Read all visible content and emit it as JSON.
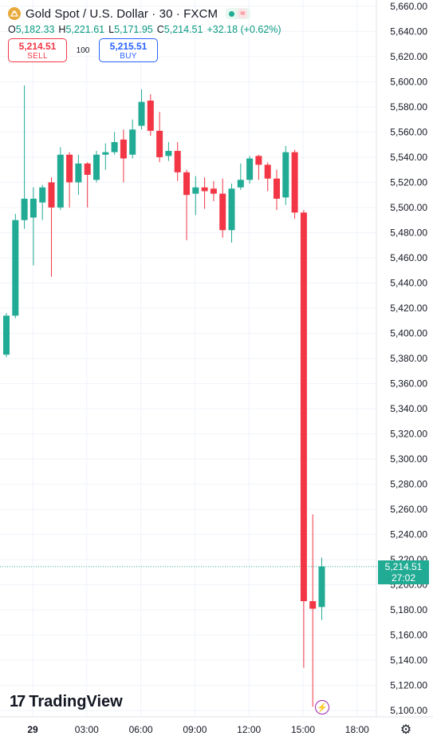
{
  "header": {
    "title": "Gold Spot / U.S. Dollar · 30 · FXCM",
    "icon": "gold-coin-icon",
    "status_icon": "market-open-dot-icon",
    "status_extra": "≈",
    "ohlc": {
      "o_key": "O",
      "o_val": "5,182.33",
      "h_key": "H",
      "h_val": "5,221.61",
      "l_key": "L",
      "l_val": "5,171.95",
      "c_key": "C",
      "c_val": "5,214.51",
      "change": "+32.18 (+0.62%)"
    }
  },
  "trade": {
    "sell_price": "5,214.51",
    "sell_label": "SELL",
    "spread": "100",
    "buy_price": "5,215.51",
    "buy_label": "BUY"
  },
  "price_tag": {
    "price": "5,214.51",
    "countdown": "27:02"
  },
  "logo": {
    "mark": "17",
    "text": "TradingView"
  },
  "colors": {
    "up": "#22ab94",
    "down": "#f23645",
    "grid": "#e0e3eb",
    "price_tag": "#22ab94"
  },
  "chart_data": {
    "type": "candlestick",
    "title": "Gold Spot / U.S. Dollar · 30 · FXCM",
    "ylim": [
      5095,
      5665
    ],
    "y_ticks": [
      5660,
      5640,
      5620,
      5600,
      5580,
      5560,
      5540,
      5520,
      5500,
      5480,
      5460,
      5440,
      5420,
      5400,
      5380,
      5360,
      5340,
      5320,
      5300,
      5280,
      5260,
      5240,
      5220,
      5200,
      5180,
      5160,
      5140,
      5120,
      5100
    ],
    "y_tick_labels": [
      "5,660.00",
      "5,640.00",
      "5,620.00",
      "5,600.00",
      "5,580.00",
      "5,560.00",
      "5,540.00",
      "5,520.00",
      "5,500.00",
      "5,480.00",
      "5,460.00",
      "5,440.00",
      "5,420.00",
      "5,400.00",
      "5,380.00",
      "5,360.00",
      "5,340.00",
      "5,320.00",
      "5,300.00",
      "5,280.00",
      "5,260.00",
      "5,240.00",
      "5,220.00",
      "5,200.00",
      "5,180.00",
      "5,160.00",
      "5,140.00",
      "5,120.00",
      "5,100.00"
    ],
    "x_tick_labels": [
      "29",
      "03:00",
      "06:00",
      "09:00",
      "12:00",
      "15:00",
      "18:00"
    ],
    "x_tick_index": [
      0,
      6,
      12,
      18,
      24,
      30,
      36
    ],
    "last_price": 5214.51,
    "candles": [
      {
        "o": 5383,
        "h": 5416,
        "l": 5381,
        "c": 5414
      },
      {
        "o": 5414,
        "h": 5495,
        "l": 5412,
        "c": 5490
      },
      {
        "o": 5490,
        "h": 5597,
        "l": 5483,
        "c": 5507
      },
      {
        "o": 5492,
        "h": 5516,
        "l": 5454,
        "c": 5507
      },
      {
        "o": 5504,
        "h": 5518,
        "l": 5490,
        "c": 5516
      },
      {
        "o": 5520,
        "h": 5524,
        "l": 5445,
        "c": 5500
      },
      {
        "o": 5500,
        "h": 5548,
        "l": 5498,
        "c": 5542
      },
      {
        "o": 5542,
        "h": 5544,
        "l": 5500,
        "c": 5520
      },
      {
        "o": 5520,
        "h": 5542,
        "l": 5510,
        "c": 5535
      },
      {
        "o": 5535,
        "h": 5536,
        "l": 5500,
        "c": 5526
      },
      {
        "o": 5522,
        "h": 5545,
        "l": 5520,
        "c": 5542
      },
      {
        "o": 5542,
        "h": 5551,
        "l": 5530,
        "c": 5544
      },
      {
        "o": 5544,
        "h": 5560,
        "l": 5542,
        "c": 5552
      },
      {
        "o": 5554,
        "h": 5562,
        "l": 5520,
        "c": 5539
      },
      {
        "o": 5542,
        "h": 5570,
        "l": 5539,
        "c": 5562
      },
      {
        "o": 5565,
        "h": 5594,
        "l": 5562,
        "c": 5584
      },
      {
        "o": 5585,
        "h": 5590,
        "l": 5557,
        "c": 5561
      },
      {
        "o": 5561,
        "h": 5576,
        "l": 5536,
        "c": 5540
      },
      {
        "o": 5541,
        "h": 5552,
        "l": 5537,
        "c": 5545
      },
      {
        "o": 5545,
        "h": 5552,
        "l": 5521,
        "c": 5528
      },
      {
        "o": 5528,
        "h": 5530,
        "l": 5474,
        "c": 5510
      },
      {
        "o": 5511,
        "h": 5525,
        "l": 5494,
        "c": 5516
      },
      {
        "o": 5516,
        "h": 5524,
        "l": 5499,
        "c": 5513
      },
      {
        "o": 5515,
        "h": 5521,
        "l": 5505,
        "c": 5511
      },
      {
        "o": 5511,
        "h": 5523,
        "l": 5476,
        "c": 5482
      },
      {
        "o": 5482,
        "h": 5519,
        "l": 5472,
        "c": 5515
      },
      {
        "o": 5516,
        "h": 5535,
        "l": 5514,
        "c": 5522
      },
      {
        "o": 5522,
        "h": 5541,
        "l": 5519,
        "c": 5539
      },
      {
        "o": 5541,
        "h": 5542,
        "l": 5522,
        "c": 5534
      },
      {
        "o": 5534,
        "h": 5536,
        "l": 5513,
        "c": 5523
      },
      {
        "o": 5523,
        "h": 5530,
        "l": 5498,
        "c": 5507
      },
      {
        "o": 5508,
        "h": 5549,
        "l": 5502,
        "c": 5544
      },
      {
        "o": 5544,
        "h": 5546,
        "l": 5491,
        "c": 5496
      },
      {
        "o": 5496,
        "h": 5498,
        "l": 5134,
        "c": 5187
      },
      {
        "o": 5187,
        "h": 5256,
        "l": 5103,
        "c": 5181
      },
      {
        "o": 5182.33,
        "h": 5221.61,
        "l": 5171.95,
        "c": 5214.51
      }
    ]
  }
}
